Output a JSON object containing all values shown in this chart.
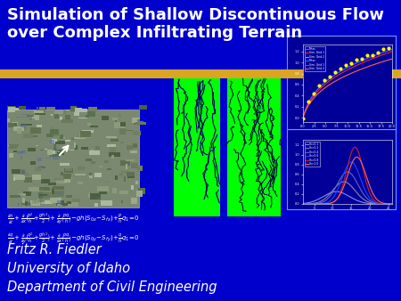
{
  "background_color": "#0000CC",
  "title_line1": "Simulation of Shallow Discontinuous Flow",
  "title_line2": "over Complex Infiltrating Terrain",
  "title_color": "#FFFFFF",
  "title_fontsize": 13,
  "title_bold": true,
  "gold_bar_color": "#DAA520",
  "author_line1": "Fritz R. Fiedler",
  "author_line2": "University of Idaho",
  "author_line3": "Department of Civil Engineering",
  "author_color": "#FFFFFF",
  "author_fontsize": 10.5,
  "eq_color": "#FFFFFF",
  "eq_fontsize": 5.0,
  "green_color": "#00FF00",
  "channel_color": "#000066",
  "plot_bg": "#000099",
  "plot_border": "#6699FF",
  "photo_facecolor": "#7a8a70",
  "hydro_colors": [
    "#8888FF",
    "#8888AA",
    "#6666CC",
    "#2244FF",
    "#CC2222",
    "#FF6666"
  ],
  "infil_dot_color": "#FFFF00",
  "infil_line_colors": [
    "#4444FF",
    "#FF2222",
    "#FF4444",
    "#888888"
  ]
}
